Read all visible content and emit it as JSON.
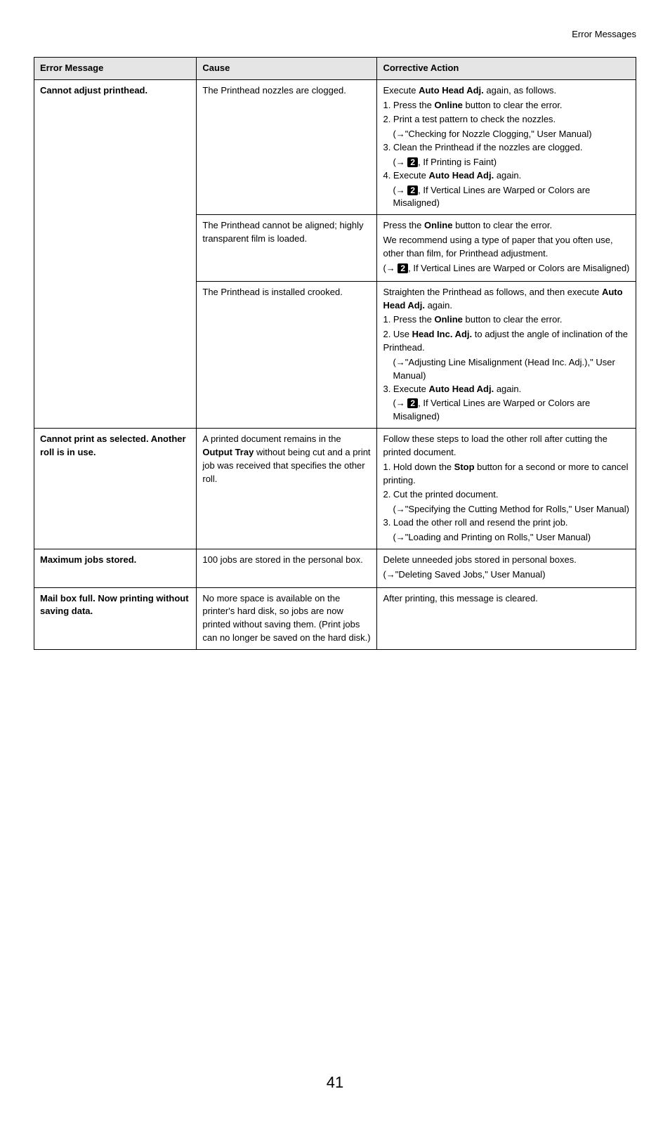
{
  "page_header": "Error Messages",
  "page_number": "41",
  "columns": [
    "Error Message",
    "Cause",
    "Corrective Action"
  ],
  "rows": [
    {
      "msg": "Cannot adjust printhead.",
      "subrows": [
        {
          "cause": "The Printhead nozzles are clogged.",
          "action": {
            "l1": "Execute ",
            "b1": "Auto Head Adj.",
            "l1b": " again, as follows.",
            "l2": "1. Press the ",
            "b2": "Online",
            "l2b": " button to clear the error.",
            "l3": "2. Print a test pattern to check the nozzles.",
            "l4": "(→\"Checking for Nozzle Clogging,\" User Manual)",
            "l5": "3. Clean the Printhead if the nozzles are clogged.",
            "l6a": "(→ ",
            "l6b": ", If Printing is Faint)",
            "l7": "4. Execute ",
            "b7": "Auto Head Adj.",
            "l7b": " again.",
            "l8a": "(→ ",
            "l8b": ", If Vertical Lines are Warped or Colors are Misaligned)"
          }
        },
        {
          "cause": "The Printhead cannot be aligned; highly transparent film is loaded.",
          "action": {
            "l1": "Press the ",
            "b1": "Online",
            "l1b": " button to clear the error.",
            "l2": "We recommend using a type of paper that you often use, other than film, for Printhead adjustment.",
            "l3a": "(→ ",
            "l3b": ", If Vertical Lines are Warped or Colors are Misaligned)"
          }
        },
        {
          "cause": "The Printhead is installed crooked.",
          "action": {
            "l1": "Straighten the Printhead as follows, and then execute ",
            "b1": "Auto Head Adj.",
            "l1b": " again.",
            "l2": "1. Press the ",
            "b2": "Online",
            "l2b": " button to clear the error.",
            "l3": "2. Use ",
            "b3": "Head Inc. Adj.",
            "l3b": " to adjust the angle of inclination of the Printhead.",
            "l4": "(→\"Adjusting Line Misalignment (Head Inc. Adj.),\" User Manual)",
            "l5": "3. Execute ",
            "b5": "Auto Head Adj.",
            "l5b": " again.",
            "l6a": "(→ ",
            "l6b": ", If Vertical Lines are Warped or Colors are Misaligned)"
          }
        }
      ]
    },
    {
      "msg": "Cannot print as selected. Another roll is in use.",
      "cause": {
        "p1": "A printed document remains in the ",
        "b1": "Output Tray",
        "p2": " without being cut and a print job was received that specifies the other roll."
      },
      "action": {
        "l1": "Follow these steps to load the other roll after cutting the printed document.",
        "l2": "1. Hold down the ",
        "b2": "Stop",
        "l2b": " button for a second or more to cancel printing.",
        "l3": "2. Cut the printed document.",
        "l4": "(→\"Specifying the Cutting Method for Rolls,\" User Manual)",
        "l5": "3. Load the other roll and resend the print job.",
        "l6": "(→\"Loading and Printing on Rolls,\" User Manual)"
      }
    },
    {
      "msg": "Maximum jobs stored.",
      "cause": "100 jobs are stored in the personal box.",
      "action": {
        "l1": "Delete unneeded jobs stored in personal boxes.",
        "l2": "(→\"Deleting Saved Jobs,\" User Manual)"
      }
    },
    {
      "msg": "Mail box full. Now printing without saving data.",
      "cause": "No more space is available on the printer's hard disk, so jobs are now printed without saving them. (Print jobs can no longer be saved on the hard disk.)",
      "action": "After printing, this message is cleared."
    }
  ],
  "num2": "2"
}
